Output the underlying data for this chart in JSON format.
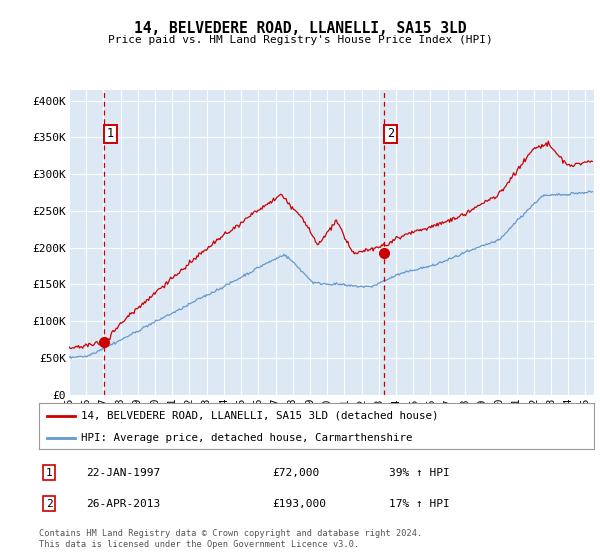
{
  "title": "14, BELVEDERE ROAD, LLANELLI, SA15 3LD",
  "subtitle": "Price paid vs. HM Land Registry's House Price Index (HPI)",
  "background_color": "#dce9f5",
  "plot_bg_color": "#dce9f5",
  "outer_bg_color": "#ffffff",
  "red_line_color": "#cc0000",
  "blue_line_color": "#6699cc",
  "sale1_year": 1997.06,
  "sale1_price": 72000,
  "sale2_year": 2013.32,
  "sale2_price": 193000,
  "ylim": [
    0,
    415000
  ],
  "xlim": [
    1995.0,
    2025.5
  ],
  "yticks": [
    0,
    50000,
    100000,
    150000,
    200000,
    250000,
    300000,
    350000,
    400000
  ],
  "ytick_labels": [
    "£0",
    "£50K",
    "£100K",
    "£150K",
    "£200K",
    "£250K",
    "£300K",
    "£350K",
    "£400K"
  ],
  "xticks": [
    1995,
    1996,
    1997,
    1998,
    1999,
    2000,
    2001,
    2002,
    2003,
    2004,
    2005,
    2006,
    2007,
    2008,
    2009,
    2010,
    2011,
    2012,
    2013,
    2014,
    2015,
    2016,
    2017,
    2018,
    2019,
    2020,
    2021,
    2022,
    2023,
    2024,
    2025
  ],
  "xtick_labels": [
    "95",
    "96",
    "97",
    "98",
    "99",
    "00",
    "01",
    "02",
    "03",
    "04",
    "05",
    "06",
    "07",
    "08",
    "09",
    "10",
    "11",
    "12",
    "13",
    "14",
    "15",
    "16",
    "17",
    "18",
    "19",
    "20",
    "21",
    "22",
    "23",
    "24",
    "25"
  ],
  "legend_label_red": "14, BELVEDERE ROAD, LLANELLI, SA15 3LD (detached house)",
  "legend_label_blue": "HPI: Average price, detached house, Carmarthenshire",
  "sale1_label": "1",
  "sale2_label": "2",
  "note1_num": "1",
  "note1_date": "22-JAN-1997",
  "note1_price": "£72,000",
  "note1_hpi": "39% ↑ HPI",
  "note2_num": "2",
  "note2_date": "26-APR-2013",
  "note2_price": "£193,000",
  "note2_hpi": "17% ↑ HPI",
  "footer": "Contains HM Land Registry data © Crown copyright and database right 2024.\nThis data is licensed under the Open Government Licence v3.0."
}
